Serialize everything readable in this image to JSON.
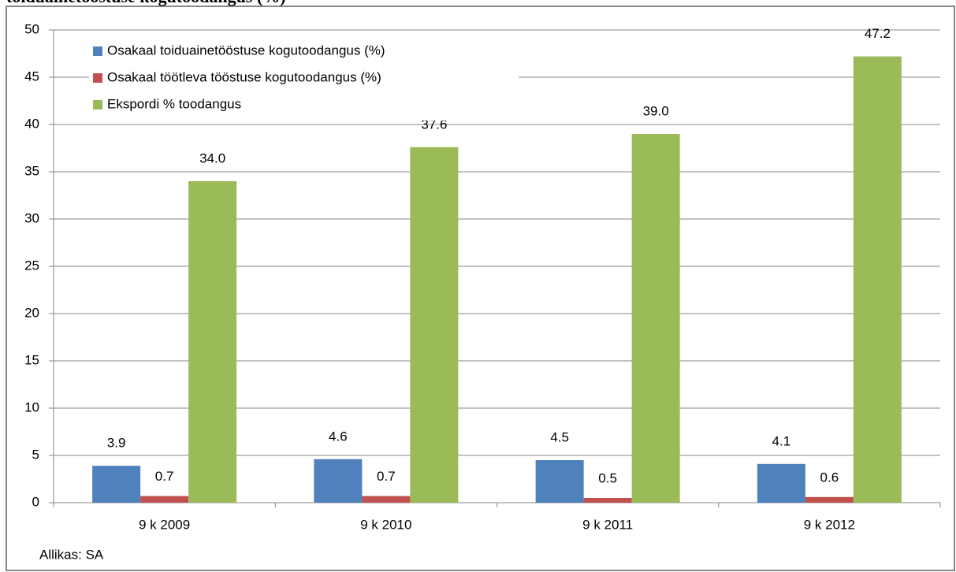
{
  "chart_data": {
    "type": "bar",
    "title": "toiduainetööstuse kogutoodangus (%)",
    "categories": [
      "9 k 2009",
      "9 k 2010",
      "9 k 2011",
      "9 k 2012"
    ],
    "series": [
      {
        "name": "Osakaal toiduainetööstuse kogutoodangus (%)",
        "color": "#4f81bd",
        "values": [
          3.9,
          4.6,
          4.5,
          4.1
        ]
      },
      {
        "name": "Osakaal töötleva tööstuse kogutoodangus (%)",
        "color": "#c0504d",
        "values": [
          0.7,
          0.7,
          0.5,
          0.6
        ]
      },
      {
        "name": "Ekspordi % toodangus",
        "color": "#9bbb59",
        "values": [
          34,
          37.6,
          39,
          47.2
        ],
        "value_labels": [
          "34.0",
          "37.6",
          "39.0",
          "47.2"
        ]
      }
    ],
    "ylim": [
      0,
      50
    ],
    "yticks": [
      0,
      5,
      10,
      15,
      20,
      25,
      30,
      35,
      40,
      45,
      50
    ],
    "grid": true,
    "legend": "top-left",
    "source": "Allikas: SA"
  }
}
